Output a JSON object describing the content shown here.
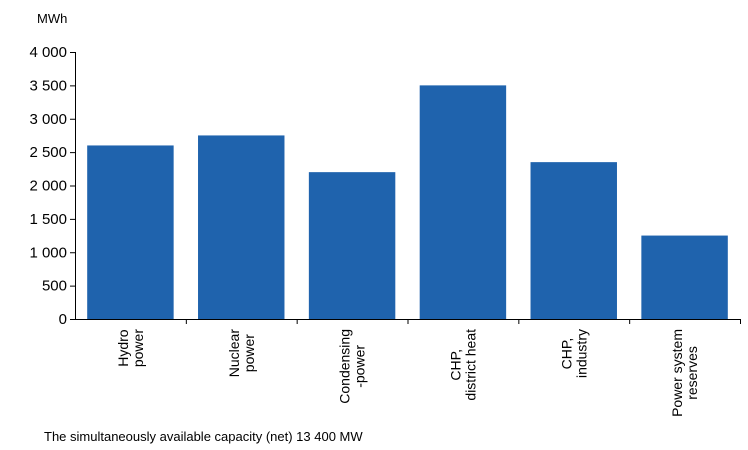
{
  "chart_data": {
    "type": "bar",
    "unit_label": "MWh",
    "categories": [
      [
        "Hydro",
        "power"
      ],
      [
        "Nuclear",
        "power"
      ],
      [
        "Condensing",
        "-power"
      ],
      [
        "CHP,",
        "district heat"
      ],
      [
        "CHP,",
        "industry"
      ],
      [
        "Power system",
        "reserves"
      ]
    ],
    "values": [
      2600,
      2750,
      2200,
      3500,
      2350,
      1250
    ],
    "ylim": [
      0,
      4000
    ],
    "y_ticks": [
      0,
      500,
      1000,
      1500,
      2000,
      2500,
      3000,
      3500,
      4000
    ],
    "y_tick_labels": [
      "0",
      "500",
      "1 000",
      "1 500",
      "2 000",
      "2 500",
      "3 000",
      "3 500",
      "4 000"
    ],
    "grid": false,
    "bar_color": "#1f63ad",
    "footnote": "The simultaneously available capacity (net) 13 400 MW"
  }
}
